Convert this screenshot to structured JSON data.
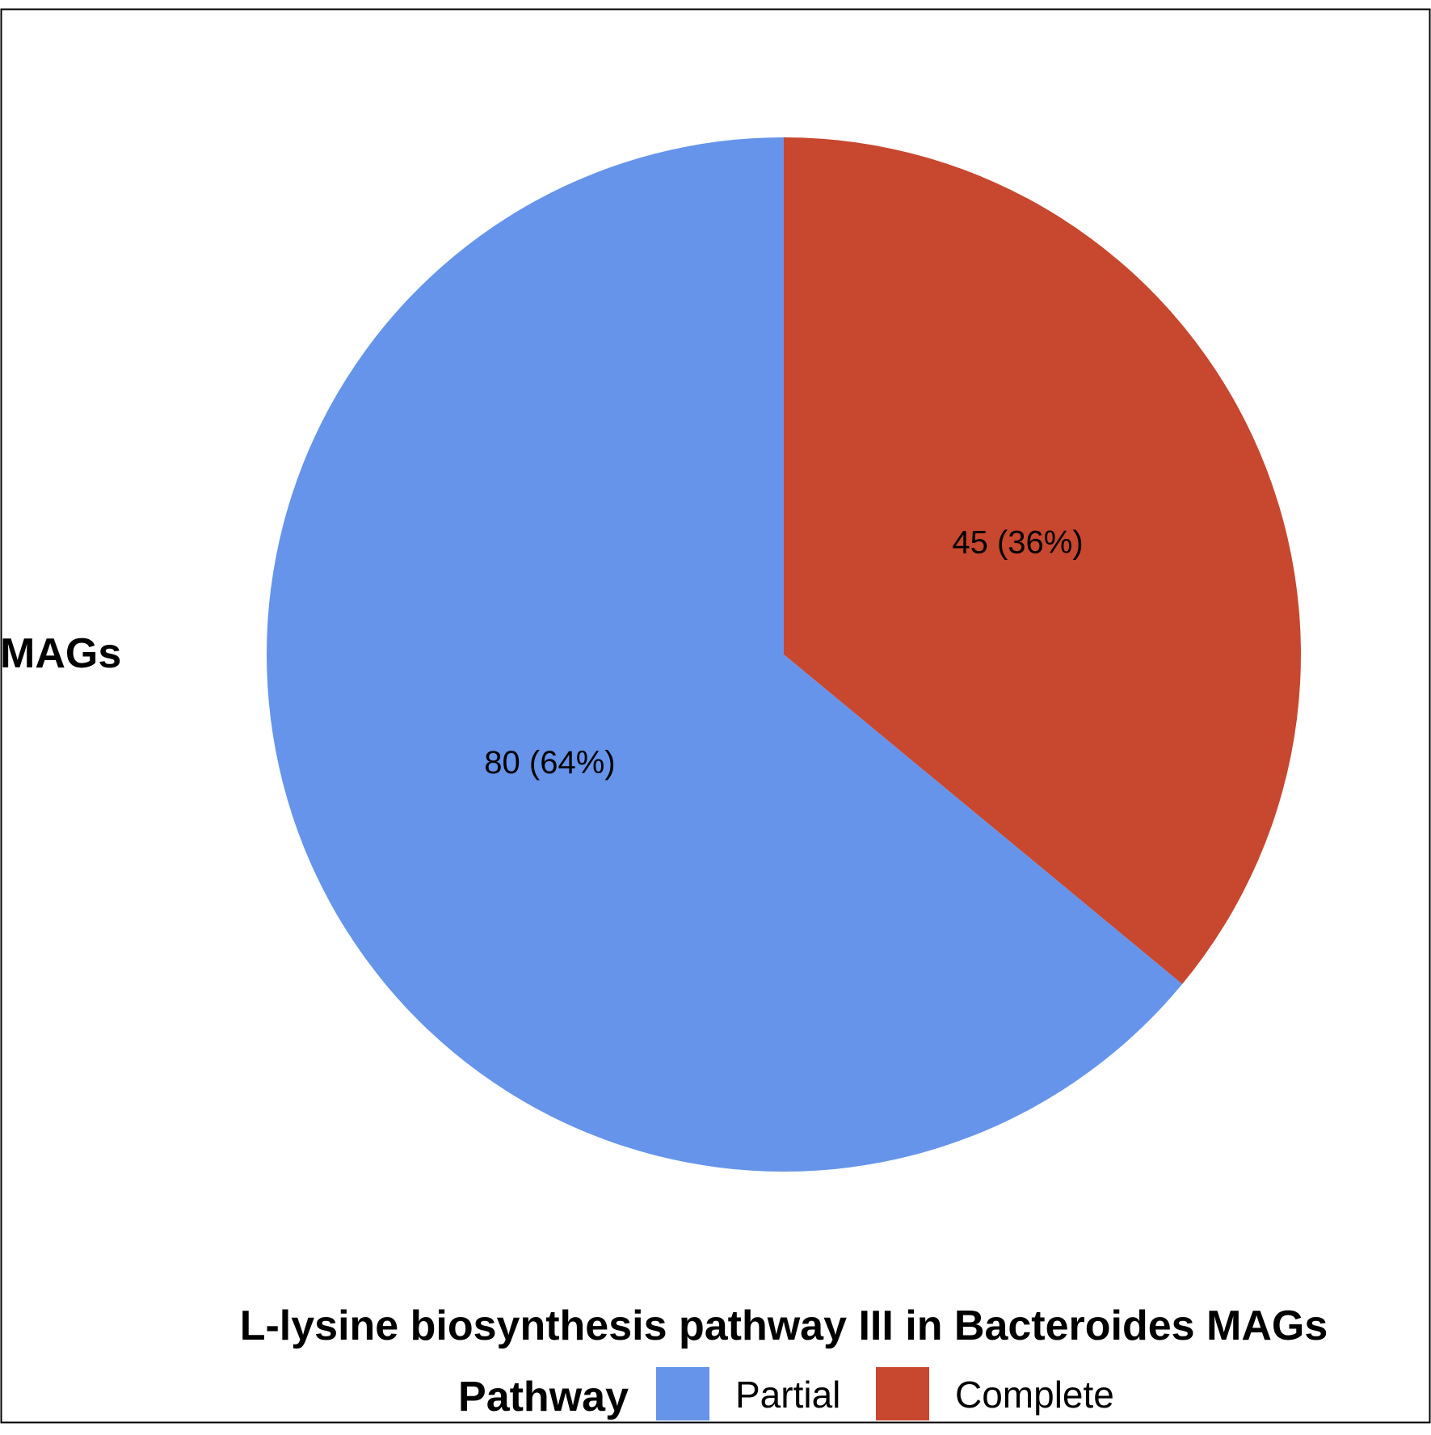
{
  "chart_data": {
    "type": "pie",
    "title": "L-lysine biosynthesis pathway III in Bacteroides MAGs",
    "ylabel": "MAGs",
    "legend_title": "Pathway",
    "legend_position": "bottom",
    "slices": [
      {
        "label": "Complete",
        "value": 45,
        "percent": 36,
        "data_label": "45 (36%)",
        "color": "#C8472F"
      },
      {
        "label": "Partial",
        "value": 80,
        "percent": 64,
        "data_label": "80 (64%)",
        "color": "#6694EA"
      }
    ],
    "legend": [
      {
        "label": "Partial",
        "color": "#6694EA"
      },
      {
        "label": "Complete",
        "color": "#C8472F"
      }
    ]
  }
}
